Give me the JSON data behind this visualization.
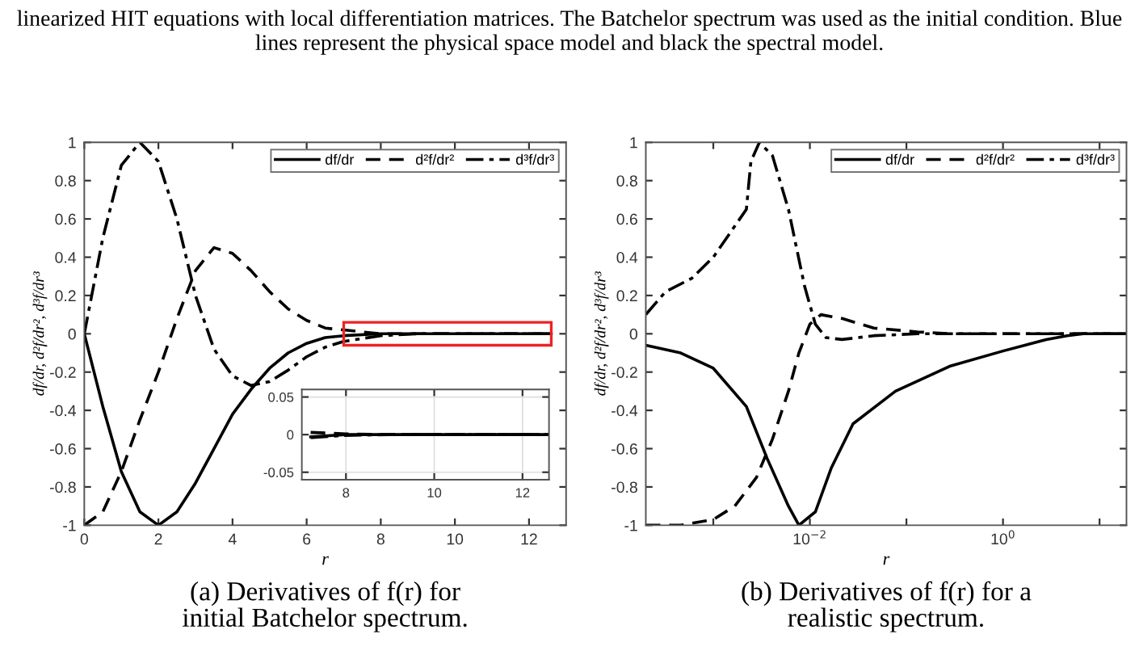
{
  "chart_data": [
    {
      "type": "line",
      "title": "linearized HIT equations with local differentiation matrices. The Batchelor spectrum was used as the initial condition. Blue lines represent the physical space model and black the spectral model.",
      "xlabel": "r",
      "ylabel": "df/dr, d²f/dr², d³f/dr³",
      "annotations": [
        "(a) Derivatives of f(r) for\ninitial Batchelor spectrum."
      ],
      "xlim": [
        0,
        13
      ],
      "xticks": [
        0,
        2,
        4,
        6,
        8,
        10,
        12
      ],
      "ylim": [
        -1,
        1
      ],
      "yticks": [
        -1,
        -0.8,
        -0.6,
        -0.4,
        -0.2,
        0,
        0.2,
        0.4,
        0.6,
        0.8,
        1
      ],
      "legend": "top right",
      "grid": false,
      "series": [
        {
          "name": "df/dr",
          "color": "#000000",
          "line_style": "solid",
          "x": [
            0,
            0.5,
            1,
            1.5,
            2,
            2.5,
            3,
            3.5,
            4,
            4.5,
            5,
            5.5,
            6,
            6.5,
            7,
            8,
            9,
            10,
            11,
            12,
            12.6
          ],
          "values": [
            0,
            -0.38,
            -0.72,
            -0.93,
            -1,
            -0.93,
            -0.78,
            -0.6,
            -0.42,
            -0.29,
            -0.18,
            -0.1,
            -0.05,
            -0.02,
            -0.01,
            0,
            0,
            0,
            0,
            0,
            0
          ]
        },
        {
          "name": "d²f/dr²",
          "color": "#000000",
          "line_style": "dashed",
          "x": [
            0,
            0.5,
            1,
            1.5,
            2,
            2.5,
            3,
            3.5,
            4,
            4.5,
            5,
            5.5,
            6,
            6.5,
            7,
            8,
            9,
            10,
            11,
            12,
            12.6
          ],
          "values": [
            -1,
            -0.93,
            -0.72,
            -0.45,
            -0.2,
            0.08,
            0.33,
            0.45,
            0.42,
            0.33,
            0.22,
            0.13,
            0.07,
            0.03,
            0.02,
            0,
            0,
            0,
            0,
            0,
            0
          ]
        },
        {
          "name": "d³f/dr³",
          "color": "#000000",
          "line_style": "dashdot",
          "x": [
            0,
            0.5,
            1,
            1.5,
            2,
            2.5,
            3,
            3.5,
            4,
            4.5,
            5,
            5.5,
            6,
            6.5,
            7,
            8,
            9,
            10,
            11,
            12,
            12.6
          ],
          "values": [
            0,
            0.5,
            0.88,
            1,
            0.9,
            0.6,
            0.2,
            -0.08,
            -0.22,
            -0.27,
            -0.25,
            -0.19,
            -0.12,
            -0.07,
            -0.04,
            -0.01,
            0,
            0,
            0,
            0,
            0
          ]
        }
      ]
    },
    {
      "type": "line",
      "xlim": [
        7,
        12.6
      ],
      "xticks": [
        8,
        10,
        12
      ],
      "ylim": [
        -0.06,
        0.06
      ],
      "yticks": [
        -0.05,
        0,
        0.05
      ],
      "grid": true,
      "series": [
        {
          "color": "#000000",
          "line_style": "solid",
          "x": [
            7.2,
            8,
            9,
            10,
            11,
            12,
            12.6
          ],
          "values": [
            -0.003,
            0,
            0,
            0,
            0,
            0,
            0
          ]
        },
        {
          "color": "#000000",
          "line_style": "dashed",
          "x": [
            7.2,
            8,
            9,
            10,
            11,
            12,
            12.6
          ],
          "values": [
            0.003,
            0.001,
            0,
            0,
            0,
            0,
            0
          ]
        },
        {
          "color": "#000000",
          "line_style": "dashdot",
          "x": [
            7.2,
            8,
            9,
            10,
            11,
            12,
            12.6
          ],
          "values": [
            -0.004,
            -0.001,
            0,
            0,
            0,
            0,
            0
          ]
        }
      ]
    },
    {
      "type": "line",
      "xlabel": "r",
      "ylabel": "df/dr, d²f/dr², d³f/dr³",
      "annotations": [
        "(b) Derivatives of f(r) for a\nrealistic spectrum."
      ],
      "log": "x",
      "xlim": [
        0.0002,
        19
      ],
      "xticks": [
        {
          "value": 0.001,
          "label": null
        },
        {
          "value": 0.01,
          "label": "10$^{−2}$"
        },
        {
          "value": 0.1,
          "label": null
        },
        {
          "value": 1,
          "label": "10$^{0}$"
        },
        {
          "value": 10,
          "label": null
        }
      ],
      "ylim": [
        -1,
        1
      ],
      "yticks": [
        -1,
        -0.8,
        -0.6,
        -0.4,
        -0.2,
        0,
        0.2,
        0.4,
        0.6,
        0.8,
        1
      ],
      "legend": "top right",
      "grid": false,
      "series": [
        {
          "name": "df/dr",
          "color": "#000000",
          "line_style": "solid",
          "x": [
            0.0002,
            0.00046,
            0.001,
            0.0022,
            0.0036,
            0.006,
            0.0077,
            0.0114,
            0.0167,
            0.028,
            0.077,
            0.28,
            1,
            2.8,
            4.6,
            6.8,
            19
          ],
          "values": [
            -0.06,
            -0.1,
            -0.18,
            -0.38,
            -0.65,
            -0.9,
            -1,
            -0.93,
            -0.7,
            -0.47,
            -0.3,
            -0.17,
            -0.09,
            -0.03,
            -0.01,
            0,
            0
          ]
        },
        {
          "name": "d²f/dr²",
          "color": "#000000",
          "line_style": "dashed",
          "x": [
            0.0002,
            0.00046,
            0.001,
            0.00167,
            0.0028,
            0.0041,
            0.006,
            0.0077,
            0.01,
            0.013,
            0.0215,
            0.046,
            0.13,
            0.28,
            19
          ],
          "values": [
            -1,
            -1,
            -0.97,
            -0.9,
            -0.75,
            -0.55,
            -0.3,
            -0.1,
            0.05,
            0.1,
            0.08,
            0.03,
            0.01,
            0,
            0
          ]
        },
        {
          "name": "d³f/dr³",
          "color": "#000000",
          "line_style": "dashdot",
          "x": [
            0.0002,
            0.00032,
            0.0006,
            0.001,
            0.0022,
            0.00245,
            0.003,
            0.0041,
            0.006,
            0.0088,
            0.0114,
            0.0147,
            0.0215,
            0.046,
            0.13,
            19
          ],
          "values": [
            0.1,
            0.22,
            0.29,
            0.4,
            0.65,
            0.9,
            1,
            0.93,
            0.65,
            0.25,
            0.05,
            -0.02,
            -0.03,
            -0.01,
            0,
            0
          ]
        }
      ]
    }
  ]
}
